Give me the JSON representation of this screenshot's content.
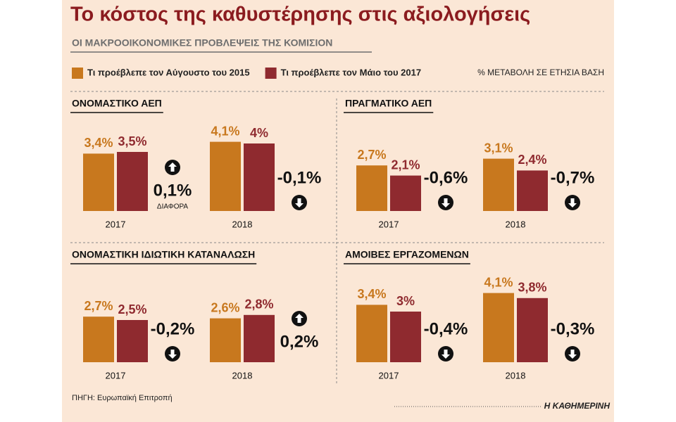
{
  "title": "Το κόστος της καθυστέρησης στις αξιολογήσεις",
  "subtitle": "ΟΙ ΜΑΚΡΟΟΙΚΟΝΟΜΙΚΕΣ ΠΡΟΒΛΕΨΕΙΣ ΤΗΣ ΚΟΜΙΣΙΟΝ",
  "legend": [
    {
      "name": "Τι προέβλεπε τον Αύγουστο του 2015",
      "color": "#c8781e"
    },
    {
      "name": "Τι προέβλεπε τον Μάιο του 2017",
      "color": "#8f2a2f"
    }
  ],
  "unit": "% ΜΕΤΑΒΟΛΗ ΣΕ ΕΤΗΣΙΑ ΒΑΣΗ",
  "source": "ΠΗΓΗ: Ευρωπαϊκή Επιτροπή",
  "publisher": "Η ΚΑΘΗΜΕΡΙΝΗ",
  "chart_data": [
    {
      "type": "bar",
      "title": "ΟΝΟΜΑΣΤΙΚΟ ΑΕΠ",
      "categories": [
        "2017",
        "2018"
      ],
      "series": [
        {
          "values": [
            3.4,
            4.1
          ],
          "value_labels": [
            "3,4%",
            "4,1%"
          ]
        },
        {
          "values": [
            3.5,
            4
          ],
          "value_labels": [
            "3,5%",
            "4%"
          ]
        }
      ],
      "differences": [
        0.1,
        -0.1
      ],
      "difference_labels": [
        "0,1%",
        "-0,1%"
      ],
      "difference_note": "ΔΙΑΦΟΡΑ"
    },
    {
      "type": "bar",
      "title": "ΠΡΑΓΜΑΤΙΚΟ ΑΕΠ",
      "categories": [
        "2017",
        "2018"
      ],
      "series": [
        {
          "values": [
            2.7,
            3.1
          ],
          "value_labels": [
            "2,7%",
            "3,1%"
          ]
        },
        {
          "values": [
            2.1,
            2.4
          ],
          "value_labels": [
            "2,1%",
            "2,4%"
          ]
        }
      ],
      "differences": [
        -0.6,
        -0.7
      ],
      "difference_labels": [
        "-0,6%",
        "-0,7%"
      ]
    },
    {
      "type": "bar",
      "title": "ΟΝΟΜΑΣΤΙΚΗ ΙΔΙΩΤΙΚΗ ΚΑΤΑΝΑΛΩΣΗ",
      "categories": [
        "2017",
        "2018"
      ],
      "series": [
        {
          "values": [
            2.7,
            2.6
          ],
          "value_labels": [
            "2,7%",
            "2,6%"
          ]
        },
        {
          "values": [
            2.5,
            2.8
          ],
          "value_labels": [
            "2,5%",
            "2,8%"
          ]
        }
      ],
      "differences": [
        -0.2,
        0.2
      ],
      "difference_labels": [
        "-0,2%",
        "0,2%"
      ]
    },
    {
      "type": "bar",
      "title": "ΑΜΟΙΒΕΣ ΕΡΓΑΖΟΜΕΝΩΝ",
      "categories": [
        "2017",
        "2018"
      ],
      "series": [
        {
          "values": [
            3.4,
            4.1
          ],
          "value_labels": [
            "3,4%",
            "4,1%"
          ]
        },
        {
          "values": [
            3,
            3.8
          ],
          "value_labels": [
            "3%",
            "3,8%"
          ]
        }
      ],
      "differences": [
        -0.4,
        -0.3
      ],
      "difference_labels": [
        "-0,4%",
        "-0,3%"
      ]
    }
  ]
}
